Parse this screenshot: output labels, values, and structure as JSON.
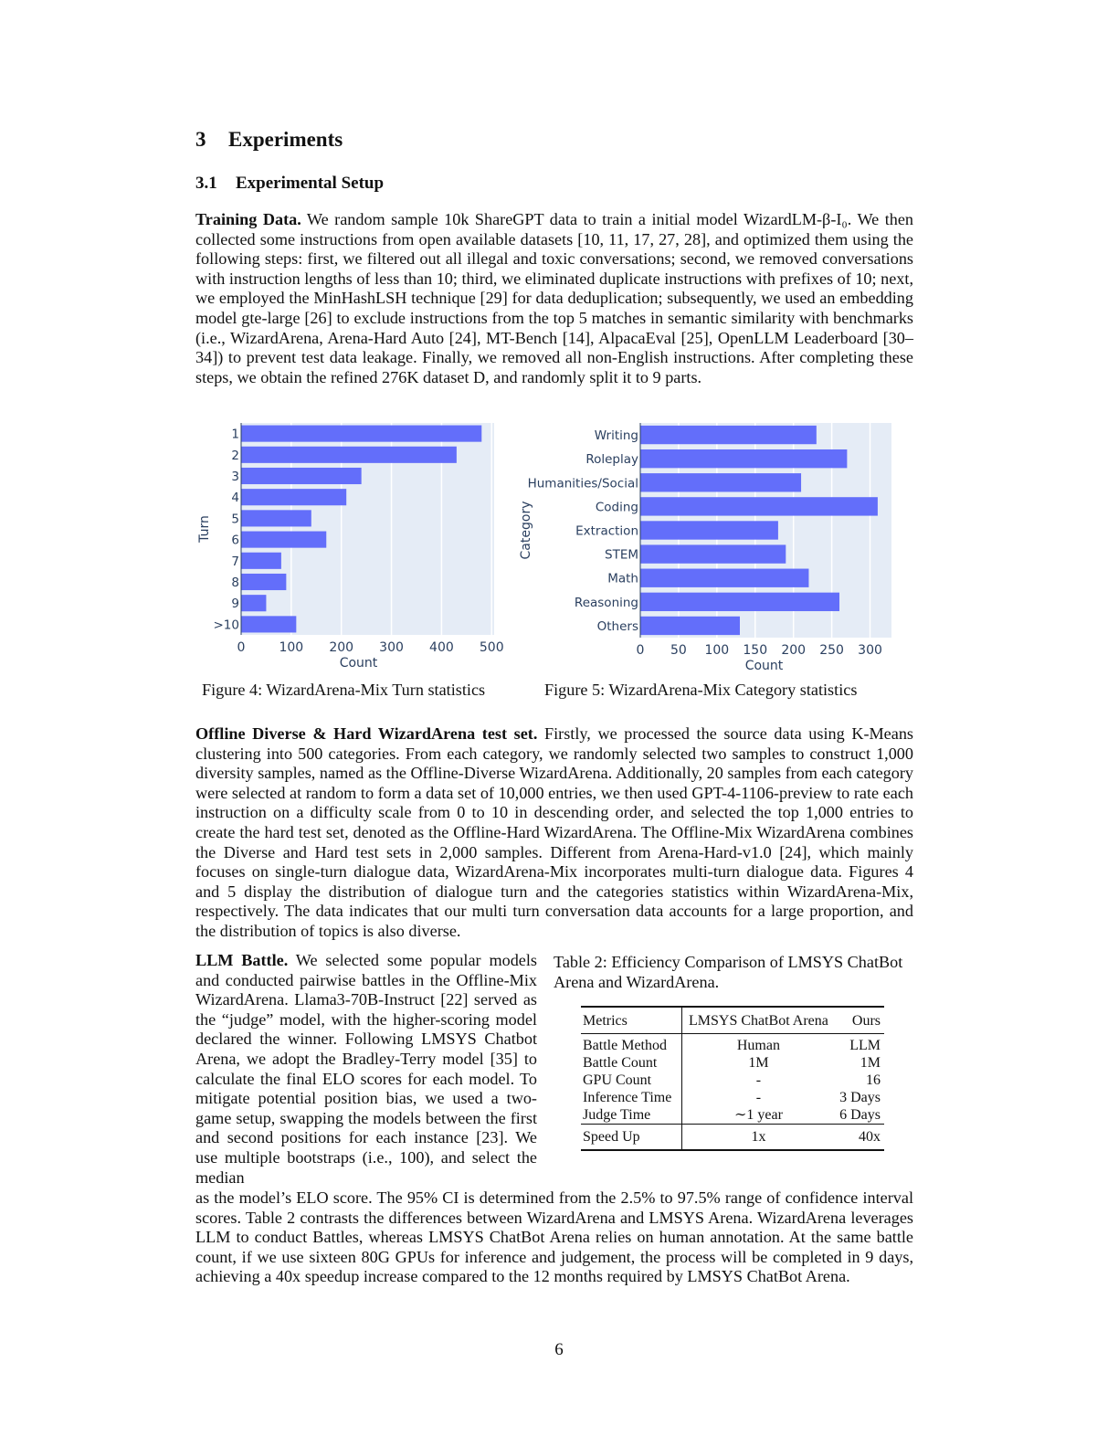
{
  "section": {
    "number": "3",
    "title": "Experiments"
  },
  "subsection": {
    "number": "3.1",
    "title": "Experimental Setup"
  },
  "training": {
    "heading": "Training Data.",
    "text": "We random sample 10k ShareGPT data to train a initial model WizardLM-β-I₀. We then collected some instructions from open available datasets [10, 11, 17, 27, 28], and optimized them using the following steps: first, we filtered out all illegal and toxic conversations; second, we removed conversations with instruction lengths of less than 10; third, we eliminated duplicate instructions with prefixes of 10; next, we employed the MinHashLSH technique [29] for data deduplication; subsequently, we used an embedding model gte-large  [26] to exclude instructions from the top 5 matches in semantic similarity with benchmarks (i.e., WizardArena, Arena-Hard Auto [24], MT-Bench [14], AlpacaEval [25], OpenLLM Leaderboard [30–34]) to prevent test data leakage. Finally, we removed all non-English instructions. After completing these steps, we obtain the refined 276K dataset D, and randomly split it to 9 parts."
  },
  "chart_data": [
    {
      "type": "bar",
      "orientation": "horizontal",
      "categories": [
        "1",
        "2",
        "3",
        "4",
        "5",
        "6",
        "7",
        "8",
        "9",
        ">10"
      ],
      "values": [
        480,
        430,
        240,
        210,
        140,
        170,
        80,
        90,
        50,
        110
      ],
      "xlabel": "Count",
      "ylabel": "Turn",
      "xticks": [
        "0",
        "100",
        "200",
        "300",
        "400",
        "500"
      ],
      "xlim": [
        0,
        505
      ],
      "bar_color": "#636efa",
      "caption": "Figure 4: WizardArena-Mix Turn statistics"
    },
    {
      "type": "bar",
      "orientation": "horizontal",
      "categories": [
        "Writing",
        "Roleplay",
        "Humanities/Social",
        "Coding",
        "Extraction",
        "STEM",
        "Math",
        "Reasoning",
        "Others"
      ],
      "values": [
        230,
        270,
        210,
        310,
        180,
        190,
        220,
        260,
        130
      ],
      "xlabel": "Count",
      "ylabel": "Category",
      "xticks": [
        "0",
        "50",
        "100",
        "150",
        "200",
        "250",
        "300"
      ],
      "xlim": [
        0,
        328
      ],
      "bar_color": "#636efa",
      "caption": "Figure 5: WizardArena-Mix Category statistics"
    }
  ],
  "offline": {
    "heading": "Offline Diverse & Hard WizardArena test set.",
    "text": "Firstly, we processed the source data using K-Means clustering into 500 categories. From each category, we randomly selected two samples to construct 1,000 diversity samples, named as the Offline-Diverse WizardArena. Additionally, 20 samples from each category were selected at random to form a data set of 10,000 entries, we then used GPT-4-1106-preview to rate each instruction on a difficulty scale from 0 to 10 in descending order, and selected the top 1,000 entries to create the hard test set, denoted as the Offline-Hard WizardArena. The Offline-Mix WizardArena combines the Diverse and Hard test sets in 2,000 samples. Different from Arena-Hard-v1.0 [24], which mainly focuses on single-turn dialogue data, WizardArena-Mix incorporates multi-turn dialogue data. Figures 4 and 5 display the distribution of dialogue turn and the categories statistics within WizardArena-Mix, respectively. The data indicates that our multi turn conversation data accounts for a large proportion, and the distribution of topics is also diverse."
  },
  "llm_battle": {
    "heading": "LLM Battle.",
    "text_a": "We selected some popular models and conducted pairwise battles in the Offline-Mix WizardArena. Llama3-70B-Instruct [22] served as the “judge” model, with the higher-scoring model declared the winner. Following LMSYS Chatbot Arena, we adopt the Bradley-Terry model [35] to calculate the final ELO scores for each model. To mitigate potential position bias, we used a two-game setup, swapping the models between the first and second positions for each instance [23]. We use multiple bootstraps (i.e., 100), and select the median",
    "text_b": "as the model’s ELO score. The 95% CI is determined from the 2.5% to 97.5% range of confidence interval scores. Table  2 contrasts the differences between WizardArena and LMSYS Arena. WizardArena leverages LLM to conduct Battles, whereas LMSYS ChatBot Arena relies on human annotation. At the same battle count, if we use sixteen 80G GPUs for inference and judgement, the process will be completed in 9 days, achieving a 40x speedup increase compared to the 12 months required by LMSYS ChatBot Arena."
  },
  "table2": {
    "caption": "Table 2: Efficiency Comparison of LMSYS ChatBot Arena and WizardArena.",
    "headers": [
      "Metrics",
      "LMSYS ChatBot Arena",
      "Ours"
    ],
    "rows": [
      [
        "Battle Method",
        "Human",
        "LLM"
      ],
      [
        "Battle Count",
        "1M",
        "1M"
      ],
      [
        "GPU Count",
        "-",
        "16"
      ],
      [
        "Inference Time",
        "-",
        "3 Days"
      ],
      [
        "Judge Time",
        "∼1 year",
        "6 Days"
      ]
    ],
    "footer": [
      "Speed Up",
      "1x",
      "40x"
    ]
  },
  "page_number": "6"
}
